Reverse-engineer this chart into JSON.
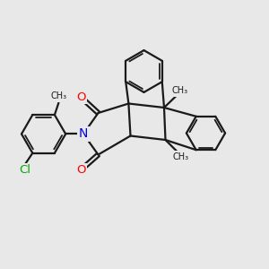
{
  "bg": "#e8e8e8",
  "bc": "#1a1a1a",
  "nc": "#0000ee",
  "oc": "#ff0000",
  "clc": "#00aa00",
  "lw": 1.6,
  "lw_thin": 1.3,
  "figsize": [
    3.0,
    3.0
  ],
  "dpi": 100,
  "xlim": [
    0,
    10
  ],
  "ylim": [
    0,
    10
  ]
}
